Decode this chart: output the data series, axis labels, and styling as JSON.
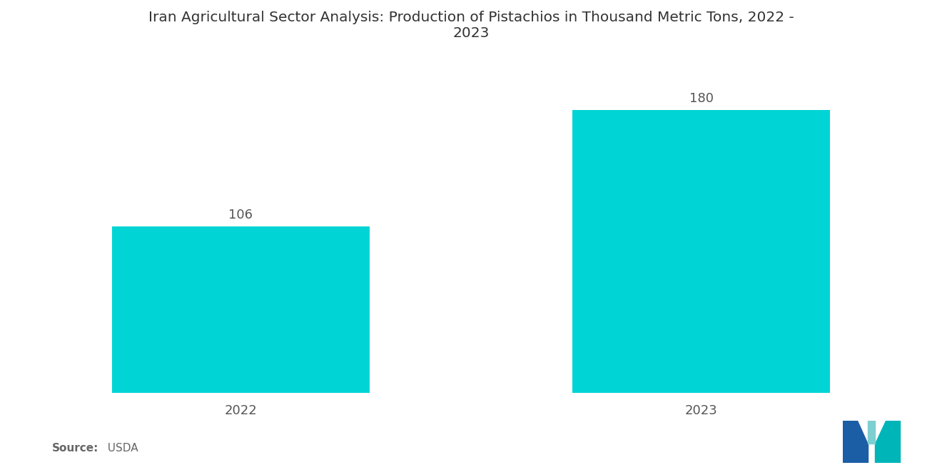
{
  "title": "Iran Agricultural Sector Analysis: Production of Pistachios in Thousand Metric Tons, 2022 -\n2023",
  "categories": [
    "2022",
    "2023"
  ],
  "values": [
    106,
    180
  ],
  "bar_color": "#00D4D4",
  "background_color": "#ffffff",
  "value_labels": [
    "106",
    "180"
  ],
  "source_bold": "Source:",
  "source_normal": "  USDA",
  "title_fontsize": 14.5,
  "tick_fontsize": 13,
  "value_fontsize": 13,
  "ylim": [
    0,
    215
  ],
  "bar_width": 0.28,
  "x_positions": [
    0.25,
    0.75
  ]
}
